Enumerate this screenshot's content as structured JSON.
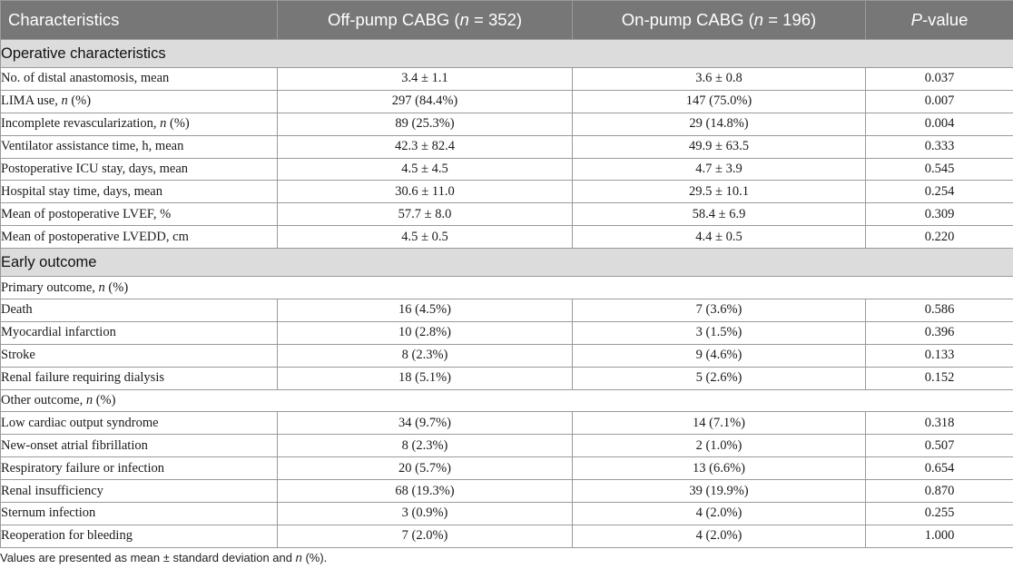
{
  "header": {
    "characteristics": "Characteristics",
    "off_pump": {
      "pre": "Off-pump CABG (",
      "italic": "n",
      "post": " = 352)"
    },
    "on_pump": {
      "pre": "On-pump CABG (",
      "italic": "n",
      "post": " = 196)"
    },
    "pvalue": {
      "italic": "P",
      "post": "-value"
    }
  },
  "sections": [
    {
      "title": "Operative characteristics",
      "groups": [
        {
          "subtitle": null,
          "rows": [
            {
              "label": "No. of distal anastomosis, mean",
              "n_italic": false,
              "indent": true,
              "off": "3.4 ± 1.1",
              "on": "3.6 ± 0.8",
              "p": "0.037"
            },
            {
              "label": "LIMA use, ",
              "n_italic": true,
              "suffix": " (%)",
              "indent": true,
              "off": "297 (84.4%)",
              "on": "147 (75.0%)",
              "p": "0.007"
            },
            {
              "label": "Incomplete revascularization, ",
              "n_italic": true,
              "suffix": " (%)",
              "indent": true,
              "off": "89 (25.3%)",
              "on": "29 (14.8%)",
              "p": "0.004"
            },
            {
              "label": "Ventilator assistance time, h, mean",
              "n_italic": false,
              "indent": true,
              "off": "42.3 ± 82.4",
              "on": "49.9 ± 63.5",
              "p": "0.333"
            },
            {
              "label": "Postoperative ICU stay, days, mean",
              "n_italic": false,
              "indent": false,
              "off": "4.5 ± 4.5",
              "on": "4.7 ± 3.9",
              "p": "0.545"
            },
            {
              "label": "Hospital stay time, days, mean",
              "n_italic": false,
              "indent": false,
              "off": "30.6 ± 11.0",
              "on": "29.5 ± 10.1",
              "p": "0.254"
            },
            {
              "label": "Mean of postoperative LVEF, %",
              "n_italic": false,
              "indent": false,
              "off": "57.7 ± 8.0",
              "on": "58.4 ± 6.9",
              "p": "0.309"
            },
            {
              "label": "Mean of postoperative LVEDD, cm",
              "n_italic": false,
              "indent": false,
              "off": "4.5 ± 0.5",
              "on": "4.4 ± 0.5",
              "p": "0.220"
            }
          ]
        }
      ]
    },
    {
      "title": "Early outcome",
      "groups": [
        {
          "subtitle": {
            "pre": "Primary outcome, ",
            "italic": "n",
            "post": " (%)"
          },
          "rows": [
            {
              "label": "Death",
              "n_italic": false,
              "indent": true,
              "off": "16 (4.5%)",
              "on": "7 (3.6%)",
              "p": "0.586"
            },
            {
              "label": "Myocardial infarction",
              "n_italic": false,
              "indent": true,
              "off": "10 (2.8%)",
              "on": "3 (1.5%)",
              "p": "0.396"
            },
            {
              "label": "Stroke",
              "n_italic": false,
              "indent": true,
              "off": "8 (2.3%)",
              "on": "9 (4.6%)",
              "p": "0.133"
            },
            {
              "label": "Renal failure requiring dialysis",
              "n_italic": false,
              "indent": true,
              "off": "18 (5.1%)",
              "on": "5 (2.6%)",
              "p": "0.152"
            }
          ]
        },
        {
          "subtitle": {
            "pre": "Other outcome, ",
            "italic": "n",
            "post": " (%)"
          },
          "rows": [
            {
              "label": "Low cardiac output syndrome",
              "n_italic": false,
              "indent": true,
              "off": "34 (9.7%)",
              "on": "14 (7.1%)",
              "p": "0.318"
            },
            {
              "label": "New-onset atrial fibrillation",
              "n_italic": false,
              "indent": true,
              "off": "8 (2.3%)",
              "on": "2 (1.0%)",
              "p": "0.507"
            },
            {
              "label": "Respiratory failure or infection",
              "n_italic": false,
              "indent": true,
              "off": "20 (5.7%)",
              "on": "13 (6.6%)",
              "p": "0.654"
            },
            {
              "label": "Renal insufficiency",
              "n_italic": false,
              "indent": true,
              "off": "68 (19.3%)",
              "on": "39 (19.9%)",
              "p": "0.870"
            },
            {
              "label": "Sternum infection",
              "n_italic": false,
              "indent": true,
              "off": "3 (0.9%)",
              "on": "4 (2.0%)",
              "p": "0.255"
            },
            {
              "label": "Reoperation for bleeding",
              "n_italic": false,
              "indent": true,
              "off": "7 (2.0%)",
              "on": "4 (2.0%)",
              "p": "1.000"
            }
          ]
        }
      ]
    }
  ],
  "footnote": {
    "pre": "Values are presented as mean ± standard deviation and ",
    "italic": "n",
    "post": " (%)."
  }
}
